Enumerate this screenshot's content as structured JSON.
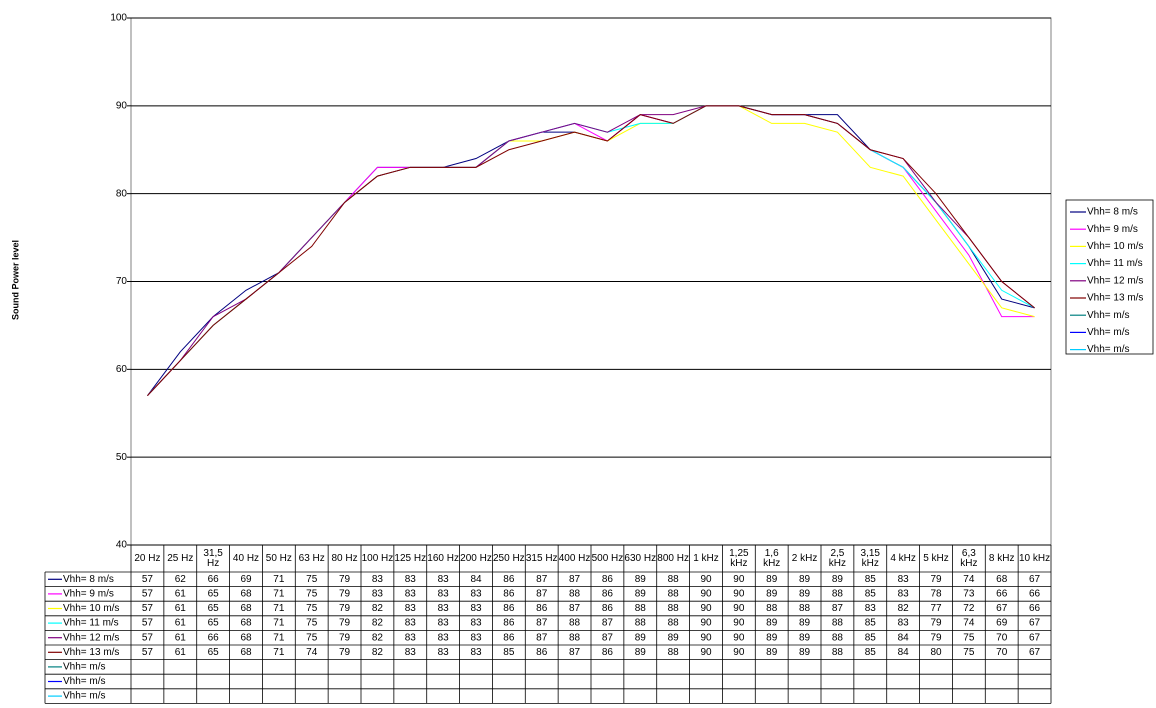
{
  "chart_data": {
    "type": "line",
    "y_label": "Sound Power level",
    "categories": [
      "20 Hz",
      "25 Hz",
      "31,5 Hz",
      "40 Hz",
      "50 Hz",
      "63 Hz",
      "80 Hz",
      "100 Hz",
      "125 Hz",
      "160 Hz",
      "200 Hz",
      "250 Hz",
      "315 Hz",
      "400 Hz",
      "500 Hz",
      "630 Hz",
      "800 Hz",
      "1 kHz",
      "1,25 kHz",
      "1,6 kHz",
      "2 kHz",
      "2,5 kHz",
      "3,15 kHz",
      "4 kHz",
      "5 kHz",
      "6,3 kHz",
      "8 kHz",
      "10 kHz"
    ],
    "series": [
      {
        "name": "Vhh= 8 m/s",
        "color": "#000080",
        "values": [
          57,
          62,
          66,
          69,
          71,
          75,
          79,
          83,
          83,
          83,
          84,
          86,
          87,
          87,
          86,
          89,
          88,
          90,
          90,
          89,
          89,
          89,
          85,
          83,
          79,
          74,
          68,
          67
        ]
      },
      {
        "name": "Vhh= 9 m/s",
        "color": "#ff00ff",
        "values": [
          57,
          61,
          65,
          68,
          71,
          75,
          79,
          83,
          83,
          83,
          83,
          86,
          87,
          88,
          86,
          89,
          88,
          90,
          90,
          89,
          89,
          88,
          85,
          83,
          78,
          73,
          66,
          66
        ]
      },
      {
        "name": "Vhh= 10 m/s",
        "color": "#ffff00",
        "values": [
          57,
          61,
          65,
          68,
          71,
          75,
          79,
          82,
          83,
          83,
          83,
          86,
          86,
          87,
          86,
          88,
          88,
          90,
          90,
          88,
          88,
          87,
          83,
          82,
          77,
          72,
          67,
          66
        ]
      },
      {
        "name": "Vhh= 11 m/s",
        "color": "#00ffff",
        "values": [
          57,
          61,
          65,
          68,
          71,
          75,
          79,
          82,
          83,
          83,
          83,
          86,
          87,
          88,
          87,
          88,
          88,
          90,
          90,
          89,
          89,
          88,
          85,
          83,
          79,
          74,
          69,
          67
        ]
      },
      {
        "name": "Vhh= 12 m/s",
        "color": "#800080",
        "values": [
          57,
          61,
          66,
          68,
          71,
          75,
          79,
          82,
          83,
          83,
          83,
          86,
          87,
          88,
          87,
          89,
          89,
          90,
          90,
          89,
          89,
          88,
          85,
          84,
          79,
          75,
          70,
          67
        ]
      },
      {
        "name": "Vhh= 13 m/s",
        "color": "#800000",
        "values": [
          57,
          61,
          65,
          68,
          71,
          74,
          79,
          82,
          83,
          83,
          83,
          85,
          86,
          87,
          86,
          89,
          88,
          90,
          90,
          89,
          89,
          88,
          85,
          84,
          80,
          75,
          70,
          67
        ]
      },
      {
        "name": "Vhh=  m/s",
        "color": "#008080",
        "values": [
          null,
          null,
          null,
          null,
          null,
          null,
          null,
          null,
          null,
          null,
          null,
          null,
          null,
          null,
          null,
          null,
          null,
          null,
          null,
          null,
          null,
          null,
          null,
          null,
          null,
          null,
          null,
          null
        ]
      },
      {
        "name": "Vhh=  m/s",
        "color": "#0000ff",
        "values": [
          null,
          null,
          null,
          null,
          null,
          null,
          null,
          null,
          null,
          null,
          null,
          null,
          null,
          null,
          null,
          null,
          null,
          null,
          null,
          null,
          null,
          null,
          null,
          null,
          null,
          null,
          null,
          null
        ]
      },
      {
        "name": "Vhh=  m/s",
        "color": "#00ccff",
        "values": [
          null,
          null,
          null,
          null,
          null,
          null,
          null,
          null,
          null,
          null,
          null,
          null,
          null,
          null,
          null,
          null,
          null,
          null,
          null,
          null,
          null,
          null,
          null,
          null,
          null,
          null,
          null,
          null
        ]
      }
    ],
    "ylim": [
      40,
      100
    ],
    "yticks": [
      40,
      50,
      60,
      70,
      80,
      90,
      100
    ],
    "grid": true,
    "legend": "right"
  }
}
